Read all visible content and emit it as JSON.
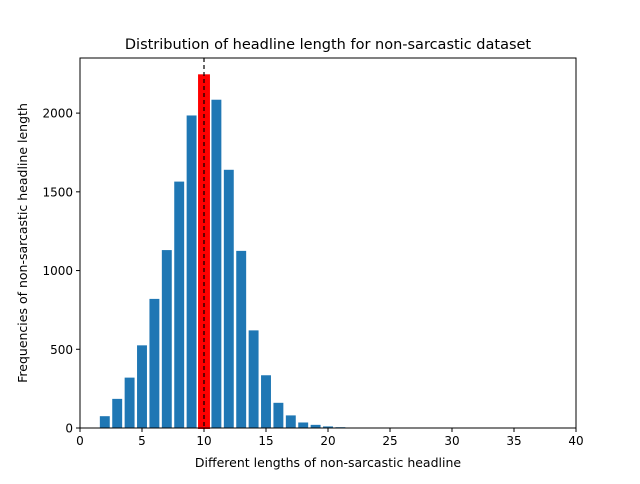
{
  "chart_data": {
    "type": "bar",
    "title": "Distribution of headline length for non-sarcastic dataset",
    "xlabel": "Different lengths of non-sarcastic headline",
    "ylabel": "Frequencies of non-sarcastic headline length",
    "xlim": [
      0,
      40
    ],
    "ylim": [
      0,
      2350
    ],
    "xticks": [
      0,
      5,
      10,
      15,
      20,
      25,
      30,
      35,
      40
    ],
    "yticks": [
      0,
      500,
      1000,
      1500,
      2000
    ],
    "grid": false,
    "x": [
      2,
      3,
      4,
      5,
      6,
      7,
      8,
      9,
      10,
      11,
      12,
      13,
      14,
      15,
      16,
      17,
      18,
      19,
      20,
      21,
      22,
      23,
      24,
      25,
      26,
      27,
      28,
      29,
      30,
      31,
      32,
      33,
      34,
      35,
      36,
      37,
      38
    ],
    "values": [
      75,
      185,
      320,
      525,
      820,
      1130,
      1565,
      1985,
      2240,
      2085,
      1640,
      1125,
      620,
      335,
      160,
      80,
      35,
      20,
      10,
      5,
      3,
      2,
      1,
      1,
      1,
      1,
      1,
      0,
      0,
      0,
      0,
      0,
      0,
      0,
      0,
      0,
      1
    ],
    "bar_color": "#1f77b4",
    "highlight": {
      "x": 10,
      "color": "#ff0000",
      "edge_color": "#ff0000"
    },
    "reference_line": {
      "x": 10,
      "style": "dashed",
      "color": "#000000"
    }
  }
}
